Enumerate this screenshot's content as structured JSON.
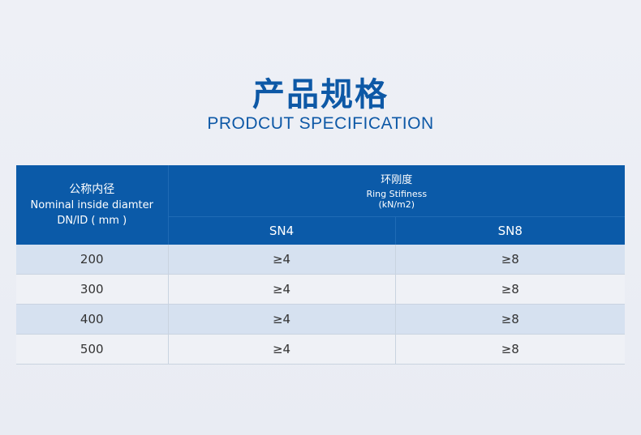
{
  "title": {
    "cn": "产品规格",
    "en": "PRODCUT SPECIFICATION"
  },
  "table": {
    "col1": {
      "cn": "公称内径",
      "en": "Nominal inside diamter",
      "unit": "DN/ID ( mm )"
    },
    "group": {
      "cn": "环刚度",
      "en": "Ring Stifiness",
      "unit": "(kN/m2)"
    },
    "sub": [
      "SN4",
      "SN8"
    ],
    "rows": [
      [
        "200",
        "≥4",
        "≥8"
      ],
      [
        "300",
        "≥4",
        "≥8"
      ],
      [
        "400",
        "≥4",
        "≥8"
      ],
      [
        "500",
        "≥4",
        "≥8"
      ]
    ]
  },
  "colors": {
    "accent": "#0b5aa8",
    "row_alt": "#d6e1f0",
    "row": "#eff1f6"
  }
}
